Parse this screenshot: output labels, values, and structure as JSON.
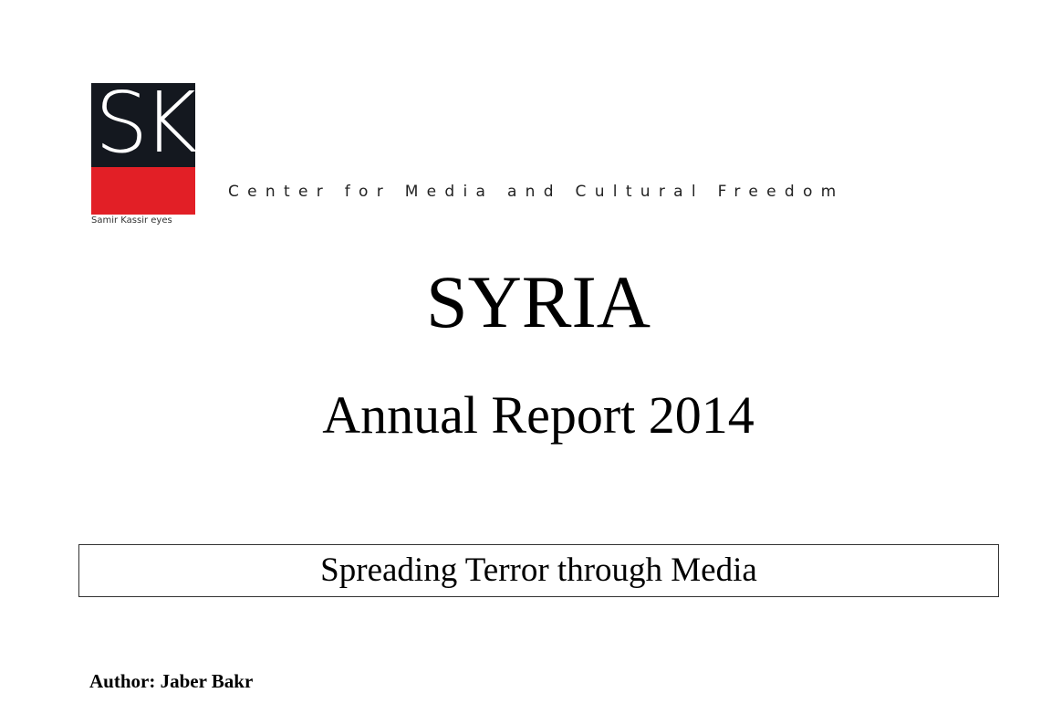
{
  "logo": {
    "letters": "SK",
    "word": "eyes",
    "caption": "Samir Kassir eyes",
    "colors": {
      "dark": "#14181f",
      "red": "#e21f26"
    }
  },
  "tagline": "Center for Media and Cultural Freedom",
  "title": "SYRIA",
  "subtitle": "Annual Report 2014",
  "boxed_title": "Spreading Terror through Media",
  "author": "Author: Jaber Bakr"
}
